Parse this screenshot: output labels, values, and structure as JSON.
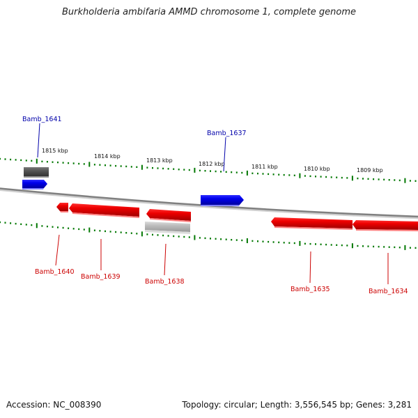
{
  "title": "Burkholderia ambifaria AMMD chromosome 1, complete genome",
  "footer": {
    "accession": "Accession: NC_008390",
    "topology": "Topology: circular; Length: 3,556,545 bp; Genes: 3,281"
  },
  "colors": {
    "forward_gene": "#0000ee",
    "reverse_gene": "#ee0000",
    "forward_other": "#555555",
    "reverse_other": "#bbbbbb",
    "backbone": "#808080",
    "tick": "#007700",
    "forward_label": "#0000aa",
    "reverse_label": "#cc0000"
  },
  "scale_ticks": [
    {
      "label": "1815 kbp",
      "kbp": 1815
    },
    {
      "label": "1814 kbp",
      "kbp": 1814
    },
    {
      "label": "1813 kbp",
      "kbp": 1813
    },
    {
      "label": "1812 kbp",
      "kbp": 1812
    },
    {
      "label": "1811 kbp",
      "kbp": 1811
    },
    {
      "label": "1810 kbp",
      "kbp": 1810
    },
    {
      "label": "1809 kbp",
      "kbp": 1809
    }
  ],
  "genes": [
    {
      "label": "Bamb_1641",
      "strand": "forward",
      "kind": "gene"
    },
    {
      "label": "",
      "strand": "forward",
      "kind": "other"
    },
    {
      "label": "Bamb_1637",
      "strand": "forward",
      "kind": "gene"
    },
    {
      "label": "Bamb_1640",
      "strand": "reverse",
      "kind": "gene"
    },
    {
      "label": "Bamb_1639",
      "strand": "reverse",
      "kind": "gene"
    },
    {
      "label": "Bamb_1638",
      "strand": "reverse",
      "kind": "gene"
    },
    {
      "label": "",
      "strand": "reverse",
      "kind": "other"
    },
    {
      "label": "Bamb_1635",
      "strand": "reverse",
      "kind": "gene"
    },
    {
      "label": "Bamb_1634",
      "strand": "reverse",
      "kind": "gene"
    }
  ]
}
